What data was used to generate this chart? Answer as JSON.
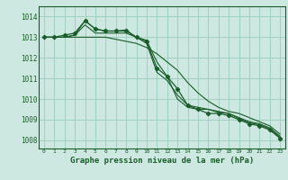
{
  "title": "Graphe pression niveau de la mer (hPa)",
  "bg_color": "#cce8e0",
  "grid_color": "#99ccbb",
  "line_color": "#1a5c2a",
  "xlim": [
    -0.5,
    23.5
  ],
  "ylim": [
    1007.6,
    1014.5
  ],
  "yticks": [
    1008,
    1009,
    1010,
    1011,
    1012,
    1013,
    1014
  ],
  "xticks": [
    0,
    1,
    2,
    3,
    4,
    5,
    6,
    7,
    8,
    9,
    10,
    11,
    12,
    13,
    14,
    15,
    16,
    17,
    18,
    19,
    20,
    21,
    22,
    23
  ],
  "series": [
    [
      1013.0,
      1013.0,
      1013.1,
      1013.2,
      1013.8,
      1013.4,
      1013.3,
      1013.3,
      1013.3,
      1013.0,
      1012.8,
      1011.5,
      1011.1,
      1010.5,
      1009.7,
      1009.5,
      1009.3,
      1009.3,
      1009.2,
      1009.0,
      1008.8,
      1008.7,
      1008.5,
      1008.1
    ],
    [
      1013.0,
      1013.0,
      1013.0,
      1013.1,
      1013.6,
      1013.2,
      1013.2,
      1013.2,
      1013.2,
      1013.0,
      1012.7,
      1011.3,
      1010.9,
      1010.2,
      1009.7,
      1009.6,
      1009.5,
      1009.4,
      1009.3,
      1009.1,
      1008.9,
      1008.8,
      1008.6,
      1008.2
    ],
    [
      1013.0,
      1013.0,
      1013.0,
      1013.0,
      1013.0,
      1013.0,
      1013.0,
      1012.9,
      1012.8,
      1012.7,
      1012.5,
      1012.2,
      1011.8,
      1011.4,
      1010.8,
      1010.3,
      1009.9,
      1009.6,
      1009.4,
      1009.3,
      1009.1,
      1008.9,
      1008.7,
      1008.3
    ],
    [
      1013.0,
      1013.0,
      1013.0,
      1013.1,
      1013.8,
      1013.4,
      1013.3,
      1013.3,
      1013.35,
      1013.0,
      1012.85,
      1011.8,
      1011.1,
      1010.0,
      1009.6,
      1009.5,
      1009.5,
      1009.35,
      1009.3,
      1009.05,
      1008.85,
      1008.75,
      1008.55,
      1008.15
    ]
  ],
  "marker_series": 0,
  "figsize": [
    3.2,
    2.0
  ],
  "dpi": 100
}
